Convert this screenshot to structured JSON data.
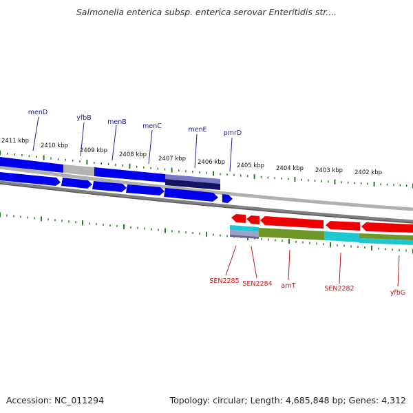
{
  "title": "Salmonella enterica subsp. enterica serovar Enteritidis str....",
  "footer": {
    "accession": "Accession: NC_011294",
    "summary": "Topology: circular; Length: 4,685,848 bp; Genes: 4,312"
  },
  "kbp_labels": [
    "2411 kbp",
    "2410 kbp",
    "2409 kbp",
    "2408 kbp",
    "2407 kbp",
    "2406 kbp",
    "2405 kbp",
    "2404 kbp",
    "2403 kbp",
    "2402 kbp"
  ],
  "forward_genes": [
    "menD",
    "yfbB",
    "menB",
    "menC",
    "menE",
    "pmrD"
  ],
  "reverse_genes": [
    "SEN2285",
    "SEN2284",
    "arnT",
    "SEN2282",
    "yfbG"
  ],
  "colors": {
    "forward_cds": "#0000ee",
    "reverse_cds": "#ee0000",
    "backbone": "#808080",
    "tick": "#208020",
    "gene_label_forward": "#1a1aa0",
    "gene_label_reverse": "#c81414",
    "grey_feature": "#b4b4b4",
    "navy_feature": "#141464",
    "lavender_feature": "#7878c8",
    "olive_feature": "#6e9628",
    "cyan_feature": "#1ec8d2"
  }
}
